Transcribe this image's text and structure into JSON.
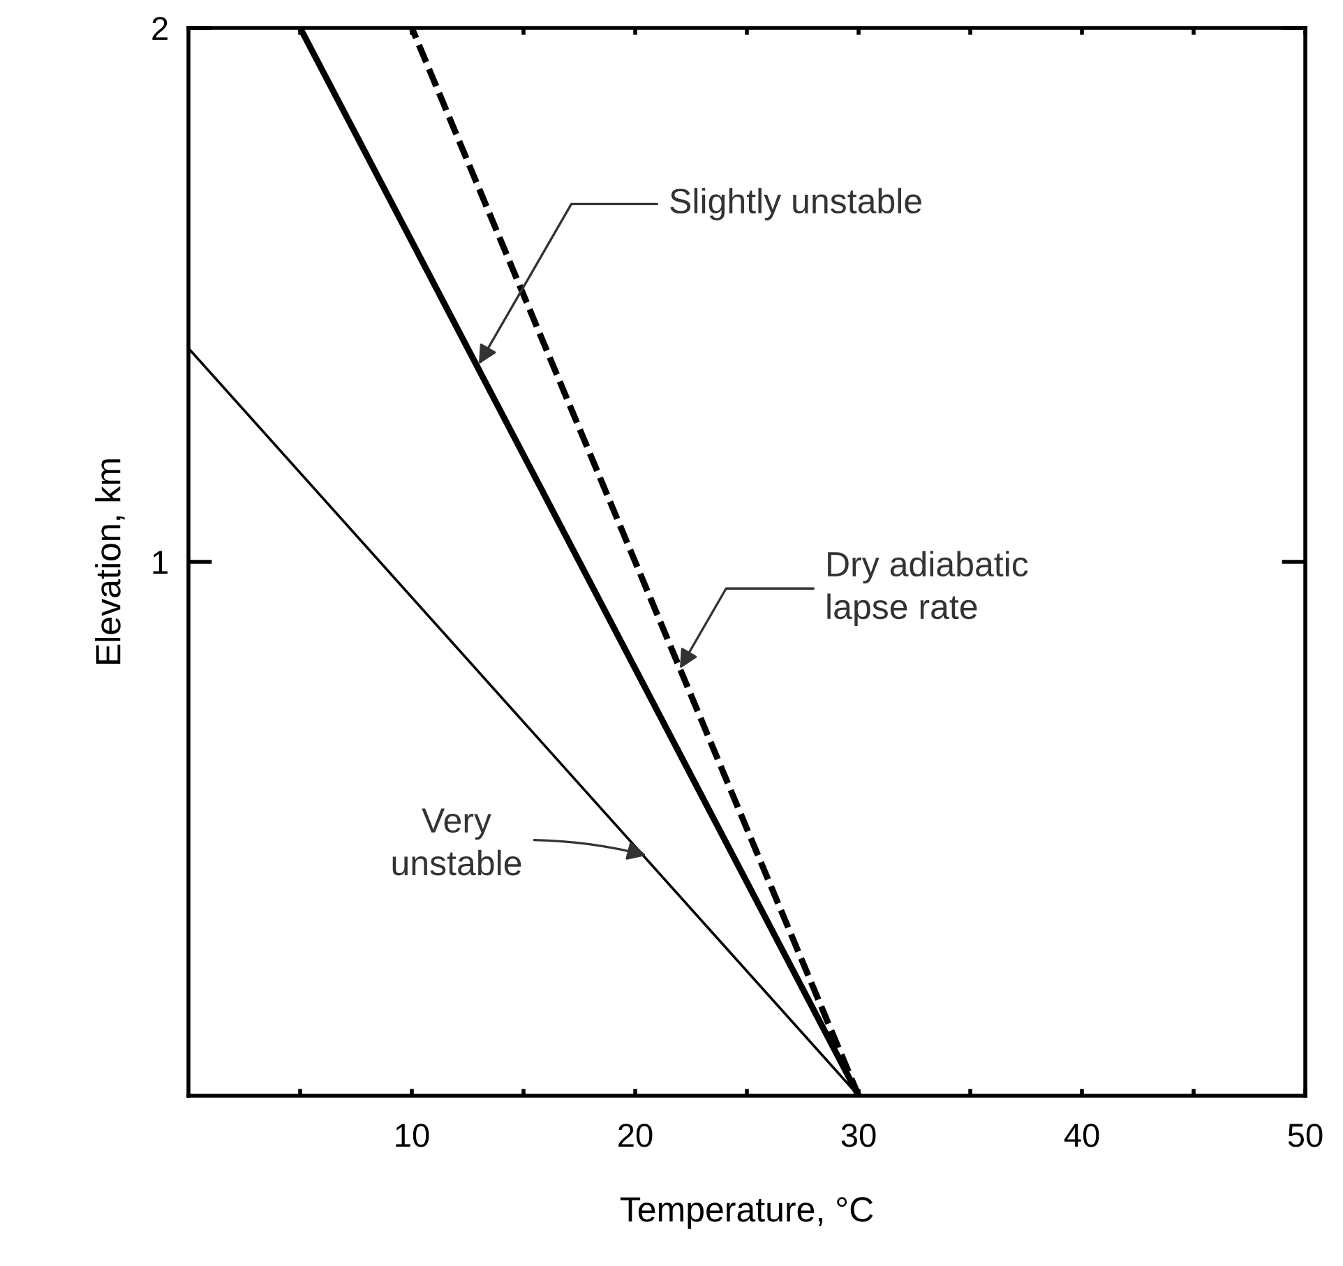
{
  "chart_data": {
    "type": "line",
    "xlabel": "Temperature, °C",
    "ylabel": "Elevation, km",
    "xlim": [
      0,
      50
    ],
    "ylim": [
      0,
      2
    ],
    "xticks": [
      {
        "value": 5,
        "label": null
      },
      10,
      {
        "value": 15,
        "label": null
      },
      20,
      {
        "value": 25,
        "label": null
      },
      30,
      {
        "value": 35,
        "label": null
      },
      40,
      {
        "value": 45,
        "label": null
      },
      50
    ],
    "yticks": [
      1,
      2
    ],
    "grid": false,
    "legend": false,
    "marker": "none",
    "series": [
      {
        "color": "#000000",
        "x": [
          30,
          5
        ],
        "values": [
          0,
          2
        ],
        "line_style": "solid"
      },
      {
        "color": "#000000",
        "x": [
          30,
          10
        ],
        "values": [
          0,
          2
        ],
        "line_style": "dashed"
      },
      {
        "color": "#000000",
        "x": [
          30,
          0
        ],
        "values": [
          0,
          1.4
        ],
        "line_style": "solid"
      }
    ],
    "annotations": [
      {
        "text": "Slightly unstable",
        "x": 13,
        "y": 1.37
      },
      {
        "text": "Dry adiabatic\nlapse rate",
        "x": 22,
        "y": 0.8
      },
      {
        "text": "Very\nunstable",
        "x": 20.5,
        "y": 0.45
      }
    ]
  }
}
